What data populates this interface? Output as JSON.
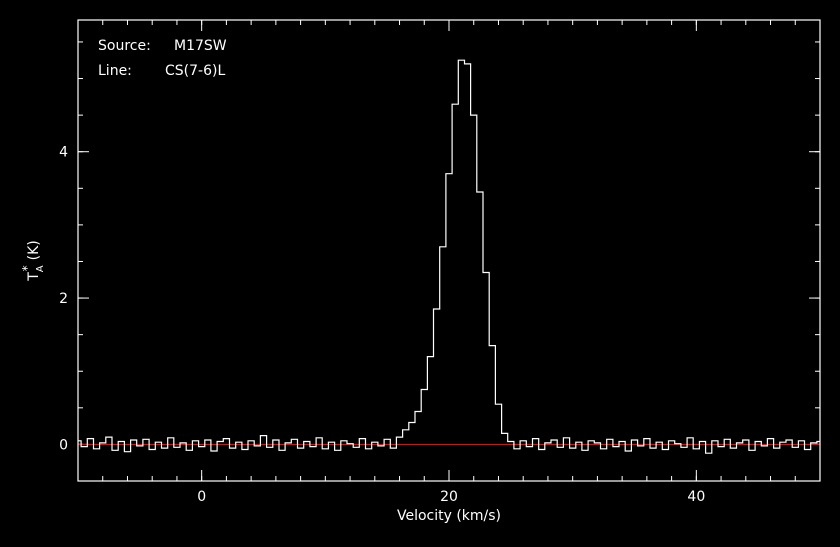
{
  "chart_data": {
    "type": "line",
    "style": "step",
    "background": "#000000",
    "line_color": "#ffffff",
    "baseline_color": "#ff0000",
    "title": "",
    "xlabel": "Velocity (km/s)",
    "ylabel_main": "T",
    "ylabel_sup": "*",
    "ylabel_sub": "A",
    "ylabel_unit": "(K)",
    "xlim": [
      -10,
      50
    ],
    "ylim": [
      -0.5,
      5.8
    ],
    "xticks": [
      0,
      20,
      40
    ],
    "yticks": [
      0,
      2,
      4
    ],
    "xtick_labels": [
      "0",
      "20",
      "40"
    ],
    "ytick_labels": [
      "0",
      "2",
      "4"
    ],
    "x_minor_step": 2,
    "y_minor_step": 0.5,
    "grid": false,
    "baseline_value": 0,
    "annotations": {
      "source_label": "Source:",
      "source_value": "M17SW",
      "line_label": "Line:",
      "line_value": "CS(7-6)L"
    },
    "series": [
      {
        "x": [
          -10,
          -9.5,
          -9,
          -8.5,
          -8,
          -7.5,
          -7,
          -6.5,
          -6,
          -5.5,
          -5,
          -4.5,
          -4,
          -3.5,
          -3,
          -2.5,
          -2,
          -1.5,
          -1,
          -0.5,
          0,
          0.5,
          1,
          1.5,
          2,
          2.5,
          3,
          3.5,
          4,
          4.5,
          5,
          5.5,
          6,
          6.5,
          7,
          7.5,
          8,
          8.5,
          9,
          9.5,
          10,
          10.5,
          11,
          11.5,
          12,
          12.5,
          13,
          13.5,
          14,
          14.5,
          15,
          15.5,
          16,
          16.5,
          17,
          17.5,
          18,
          18.5,
          19,
          19.5,
          20,
          20.5,
          21,
          21.5,
          22,
          22.5,
          23,
          23.5,
          24,
          24.5,
          25,
          25.5,
          26,
          26.5,
          27,
          27.5,
          28,
          28.5,
          29,
          29.5,
          30,
          30.5,
          31,
          31.5,
          32,
          32.5,
          33,
          33.5,
          34,
          34.5,
          35,
          35.5,
          36,
          36.5,
          37,
          37.5,
          38,
          38.5,
          39,
          39.5,
          40,
          40.5,
          41,
          41.5,
          42,
          42.5,
          43,
          43.5,
          44,
          44.5,
          45,
          45.5,
          46,
          46.5,
          47,
          47.5,
          48,
          48.5,
          49,
          49.5,
          50
        ],
        "y": [
          0.05,
          -0.03,
          0.08,
          -0.06,
          0.02,
          0.1,
          -0.08,
          0.04,
          -0.1,
          0.06,
          -0.02,
          0.07,
          -0.07,
          0.03,
          -0.05,
          0.09,
          -0.04,
          0.02,
          -0.08,
          0.05,
          -0.03,
          0.06,
          -0.09,
          0.04,
          0.08,
          -0.05,
          0.03,
          -0.07,
          0.05,
          -0.02,
          0.12,
          -0.04,
          0.06,
          -0.08,
          0.02,
          0.07,
          -0.05,
          0.04,
          -0.03,
          0.09,
          -0.06,
          0.03,
          -0.08,
          0.05,
          0.01,
          -0.04,
          0.08,
          -0.06,
          0.03,
          -0.02,
          0.07,
          -0.05,
          0.1,
          0.2,
          0.3,
          0.45,
          0.75,
          1.2,
          1.85,
          2.7,
          3.7,
          4.65,
          5.25,
          5.2,
          4.5,
          3.45,
          2.35,
          1.35,
          0.55,
          0.15,
          0.04,
          -0.06,
          0.05,
          -0.03,
          0.08,
          -0.07,
          0.02,
          0.06,
          -0.04,
          0.09,
          -0.05,
          0.03,
          -0.08,
          0.05,
          0.02,
          -0.06,
          0.07,
          -0.03,
          0.04,
          -0.09,
          0.06,
          -0.02,
          0.08,
          -0.05,
          0.03,
          -0.07,
          0.05,
          0.01,
          -0.04,
          0.09,
          -0.06,
          0.04,
          -0.12,
          0.05,
          -0.03,
          0.07,
          -0.05,
          0.02,
          0.06,
          -0.08,
          0.04,
          -0.02,
          0.08,
          -0.05,
          0.03,
          0.06,
          -0.04,
          0.05,
          -0.07,
          0.02,
          0.04
        ]
      }
    ]
  }
}
